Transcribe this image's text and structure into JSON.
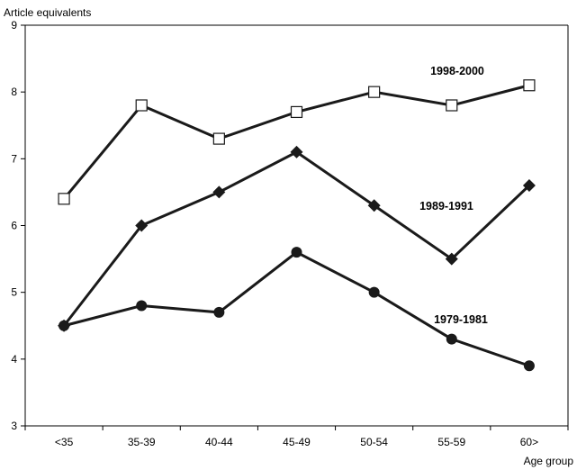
{
  "chart_data": {
    "type": "line",
    "ylabel": "Article equivalents",
    "xlabel": "Age group",
    "categories": [
      "<35",
      "35-39",
      "40-44",
      "45-49",
      "50-54",
      "55-59",
      "60>"
    ],
    "ylim": [
      3,
      9
    ],
    "yticks": [
      3,
      4,
      5,
      6,
      7,
      8,
      9
    ],
    "grid": false,
    "series": [
      {
        "name": "1998-2000",
        "marker": "open-square",
        "values": [
          6.4,
          7.8,
          7.3,
          7.7,
          8.0,
          7.8,
          8.1
        ]
      },
      {
        "name": "1989-1991",
        "marker": "filled-diamond",
        "values": [
          4.5,
          6.0,
          6.5,
          7.1,
          6.3,
          5.5,
          6.6
        ]
      },
      {
        "name": "1979-1981",
        "marker": "filled-circle",
        "values": [
          4.5,
          4.8,
          4.7,
          5.6,
          5.0,
          4.3,
          3.9
        ]
      }
    ],
    "line_color": "#1a1a1a"
  }
}
